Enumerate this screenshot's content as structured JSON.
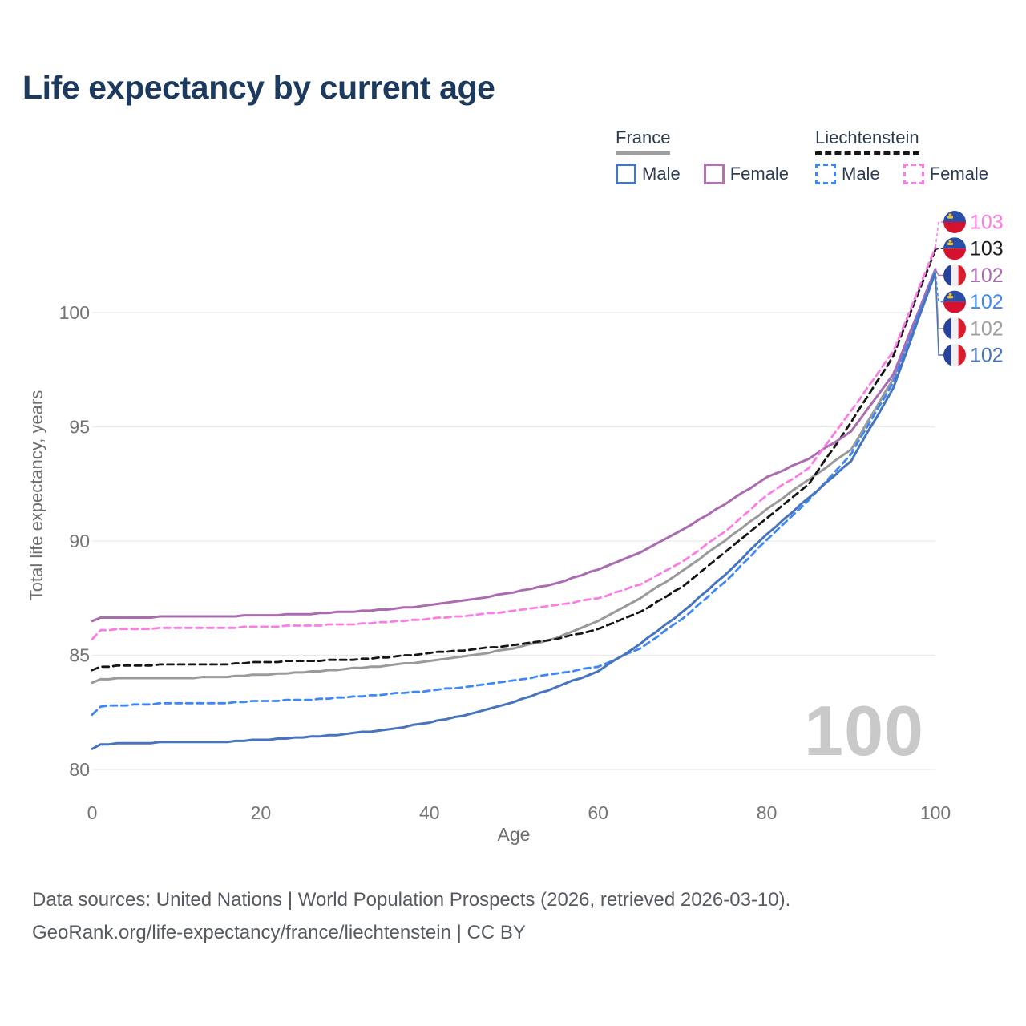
{
  "title": "Life expectancy by current age",
  "watermark": "100",
  "colors": {
    "title": "#1b3a5e",
    "axis_text": "#757575",
    "axis_label": "#6e6e6e",
    "grid": "#e9e9e9",
    "watermark": "#c9c9c9",
    "legend_text": "#2d3c50",
    "france_underline": "#9e9e9e",
    "liechtenstein_underline": "#161616"
  },
  "legend": {
    "groups": [
      {
        "label": "France",
        "line_style": "solid",
        "items": [
          {
            "label": "Male",
            "color": "#4674bd",
            "dashed": false
          },
          {
            "label": "Female",
            "color": "#b274ae",
            "dashed": false
          }
        ]
      },
      {
        "label": "Liechtenstein",
        "line_style": "dashed",
        "items": [
          {
            "label": "Male",
            "color": "#3e87f6",
            "dashed": true
          },
          {
            "label": "Female",
            "color": "#fb7de4",
            "dashed": true
          }
        ]
      }
    ]
  },
  "end_labels": [
    {
      "value": "103",
      "flag": "liechtenstein",
      "series": "Liechtenstein Female",
      "color": "#fb7de4"
    },
    {
      "value": "103",
      "flag": "liechtenstein",
      "series": "Liechtenstein Total",
      "color": "#1a1a1a"
    },
    {
      "value": "102",
      "flag": "france",
      "series": "France Female",
      "color": "#ab6bb0"
    },
    {
      "value": "102",
      "flag": "liechtenstein",
      "series": "Liechtenstein Male",
      "color": "#3e87f6"
    },
    {
      "value": "102",
      "flag": "france",
      "series": "France Total",
      "color": "#9e9e9e"
    },
    {
      "value": "102",
      "flag": "france",
      "series": "France Male",
      "color": "#4674bd"
    }
  ],
  "footer": {
    "line1": "Data sources: United Nations | World Population Prospects (2026, retrieved 2026-03-10).",
    "line2": "GeoRank.org/life-expectancy/france/liechtenstein | CC BY"
  },
  "chart_data": {
    "type": "line",
    "title": "Life expectancy by current age",
    "xlabel": "Age",
    "ylabel": "Total life expectancy, years",
    "x_ticks": [
      0,
      20,
      40,
      60,
      80,
      100
    ],
    "y_ticks": [
      80,
      85,
      90,
      95,
      100
    ],
    "xlim": [
      0,
      100
    ],
    "ylim": [
      79.3,
      103.5
    ],
    "grid": "horizontal-only",
    "legend_position": "top-right",
    "x": [
      0,
      1,
      5,
      10,
      15,
      20,
      25,
      30,
      35,
      40,
      45,
      50,
      55,
      60,
      65,
      70,
      75,
      80,
      85,
      90,
      95,
      100
    ],
    "series": [
      {
        "name": "France Male",
        "country": "France",
        "sex": "Male",
        "color": "#4674bd",
        "dash": false,
        "values": [
          80.9,
          81.1,
          81.15,
          81.2,
          81.2,
          81.3,
          81.4,
          81.55,
          81.75,
          82.05,
          82.45,
          82.95,
          83.6,
          84.3,
          85.5,
          86.9,
          88.5,
          90.3,
          91.9,
          93.5,
          96.7,
          101.75
        ]
      },
      {
        "name": "Liechtenstein Male",
        "country": "Liechtenstein",
        "sex": "Male",
        "color": "#3e87f6",
        "dash": true,
        "values": [
          82.4,
          82.75,
          82.85,
          82.9,
          82.9,
          83.0,
          83.05,
          83.15,
          83.3,
          83.45,
          83.65,
          83.9,
          84.2,
          84.5,
          85.3,
          86.6,
          88.2,
          90.05,
          91.8,
          93.8,
          96.95,
          101.85
        ]
      },
      {
        "name": "France Total",
        "country": "France",
        "sex": "Total",
        "color": "#9a9a9a",
        "dash": false,
        "values": [
          83.8,
          83.95,
          84.0,
          84.0,
          84.05,
          84.15,
          84.25,
          84.4,
          84.55,
          84.75,
          85.0,
          85.3,
          85.75,
          86.5,
          87.5,
          88.7,
          90.0,
          91.4,
          92.7,
          94.0,
          97.1,
          101.8
        ]
      },
      {
        "name": "Liechtenstein Total",
        "country": "Liechtenstein",
        "sex": "Total",
        "color": "#161616",
        "dash": true,
        "values": [
          84.35,
          84.5,
          84.55,
          84.6,
          84.6,
          84.7,
          84.75,
          84.8,
          84.9,
          85.1,
          85.25,
          85.45,
          85.7,
          86.15,
          86.9,
          88.0,
          89.5,
          91.0,
          92.5,
          95.2,
          98.1,
          102.75
        ]
      },
      {
        "name": "France Female",
        "country": "France",
        "sex": "Female",
        "color": "#ab6bb0",
        "dash": false,
        "values": [
          86.5,
          86.65,
          86.65,
          86.7,
          86.7,
          86.75,
          86.8,
          86.9,
          87.0,
          87.2,
          87.45,
          87.75,
          88.15,
          88.75,
          89.5,
          90.5,
          91.6,
          92.8,
          93.6,
          94.8,
          97.3,
          101.9
        ]
      },
      {
        "name": "Liechtenstein Female",
        "country": "Liechtenstein",
        "sex": "Female",
        "color": "#fb7de4",
        "dash": true,
        "values": [
          85.7,
          86.1,
          86.15,
          86.2,
          86.2,
          86.25,
          86.3,
          86.35,
          86.45,
          86.6,
          86.75,
          86.95,
          87.2,
          87.5,
          88.1,
          89.1,
          90.4,
          92.0,
          93.2,
          95.7,
          98.3,
          102.85
        ]
      }
    ]
  }
}
